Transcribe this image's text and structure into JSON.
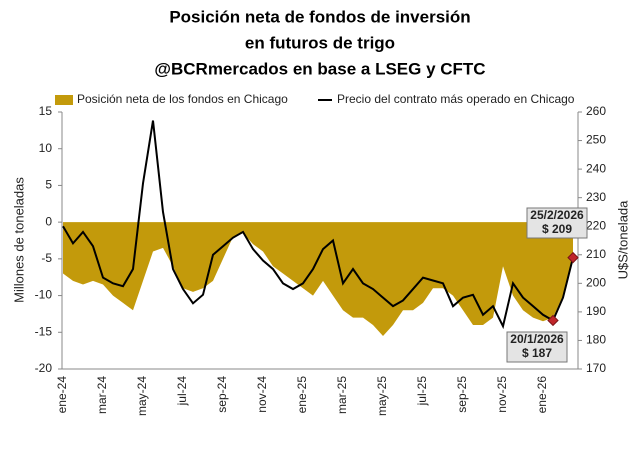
{
  "chart_data": {
    "type": "area-line",
    "title": [
      "Posición neta de fondos de inversión",
      "en futuros de trigo",
      "@BCRmercados en base a LSEG y CFTC"
    ],
    "ylabel": "Millones de toneladas",
    "y2label": "U$S/tonelada",
    "categories": [
      "ene-24",
      null,
      null,
      null,
      "mar-24",
      null,
      null,
      null,
      "may-24",
      null,
      null,
      null,
      "jul-24",
      null,
      null,
      null,
      "sep-24",
      null,
      null,
      null,
      "nov-24",
      null,
      null,
      null,
      "ene-25",
      null,
      null,
      null,
      "mar-25",
      null,
      null,
      null,
      "may-25",
      null,
      null,
      null,
      "jul-25",
      null,
      null,
      null,
      "sep-25",
      null,
      null,
      null,
      "nov-25",
      null,
      null,
      null,
      "ene-26",
      null,
      null,
      null
    ],
    "series": [
      {
        "name": "Posición neta de los fondos en Chicago",
        "color": "#c39a0b",
        "axis": "y",
        "values": [
          -7,
          -8,
          -8.5,
          -8,
          -8.5,
          -10,
          -11,
          -12,
          -8,
          -4,
          -3.5,
          -6,
          -9,
          -9.5,
          -9,
          -8,
          -5,
          -2,
          -1.5,
          -3,
          -4,
          -6,
          -7,
          -8,
          -9,
          -10,
          -8,
          -10,
          -12,
          -13,
          -13,
          -14,
          -15.5,
          -14,
          -12,
          -12,
          -11,
          -9,
          -9,
          -10,
          -12,
          -14,
          -14,
          -13,
          -6,
          -10,
          -12,
          -13,
          -13.5,
          -13,
          -10,
          -5
        ]
      },
      {
        "name": "Precio del contrato más operado en Chicago",
        "color": "#000000",
        "axis": "y2",
        "values": [
          220,
          214,
          218,
          213,
          202,
          200,
          199,
          205,
          235,
          257,
          225,
          205,
          198,
          193,
          196,
          210,
          213,
          216,
          218,
          212,
          208,
          205,
          200,
          198,
          200,
          205,
          212,
          215,
          200,
          205,
          200,
          198,
          195,
          192,
          194,
          198,
          202,
          201,
          200,
          192,
          195,
          196,
          189,
          192,
          185,
          200,
          195,
          192,
          189,
          187,
          195,
          209
        ]
      }
    ],
    "ylim": [
      -20,
      15
    ],
    "yticks": [
      15,
      10,
      5,
      0,
      -5,
      -10,
      -15,
      -20
    ],
    "y2lim": [
      170,
      260
    ],
    "y2ticks": [
      260,
      250,
      240,
      230,
      220,
      210,
      200,
      190,
      180,
      170
    ],
    "legend": "top",
    "annotations": [
      [
        "25/2/2026",
        "$ 209"
      ],
      [
        "20/1/2026",
        "$ 187"
      ]
    ]
  }
}
